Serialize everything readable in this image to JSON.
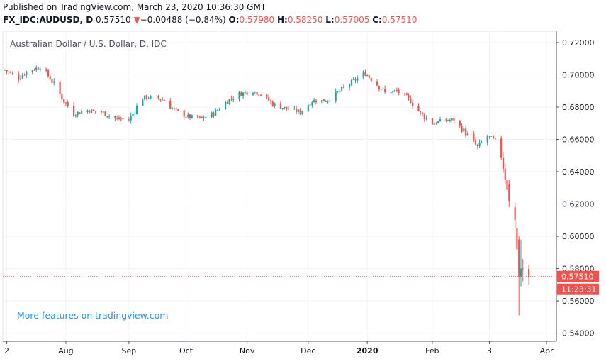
{
  "header": {
    "published": "Published on TradingView.com, March 23, 2020 10:36:30 GMT",
    "symbol": "FX_IDC:AUDUSD, D",
    "last": "0.57510",
    "arrow": "▼",
    "change": "−0.00488 (−0.84%)",
    "o_label": "O:",
    "o_value": "0.57980",
    "h_label": "H:",
    "h_value": "0.58250",
    "l_label": "L:",
    "l_value": "0.57005",
    "c_label": "C:",
    "c_value": "0.57510"
  },
  "promo": "More features on tradingview.com",
  "price_tag": {
    "price": "0.57510",
    "countdown": "11:23:31"
  },
  "colors": {
    "up": "#26a69a",
    "down": "#ef5350",
    "grid": "#f0f3fa",
    "axis": "#787b86"
  },
  "chart_data": {
    "type": "candlestick",
    "title": "Australian Dollar / U.S. Dollar, D, IDC",
    "ylim": [
      0.535,
      0.727
    ],
    "y_ticks": [
      0.72,
      0.7,
      0.68,
      0.66,
      0.64,
      0.62,
      0.6,
      0.58,
      0.56,
      0.54
    ],
    "y_tick_labels": [
      "0.72000",
      "0.70000",
      "0.68000",
      "0.66000",
      "0.64000",
      "0.62000",
      "0.60000",
      "0.58000",
      "0.56000",
      "0.54000"
    ],
    "x_ticks": [
      {
        "label": "2",
        "date": "2019-07-02"
      },
      {
        "label": "Aug",
        "date": "2019-08-01"
      },
      {
        "label": "Sep",
        "date": "2019-09-02"
      },
      {
        "label": "Oct",
        "date": "2019-10-01"
      },
      {
        "label": "Nov",
        "date": "2019-11-01"
      },
      {
        "label": "Dec",
        "date": "2019-12-02"
      },
      {
        "label": "2020",
        "date": "2020-01-01"
      },
      {
        "label": "Feb",
        "date": "2020-02-03"
      },
      {
        "label": "3",
        "date": "2020-03-03"
      },
      {
        "label": "Apr",
        "date": "2020-04-01"
      }
    ],
    "x_range": [
      "2019-06-30",
      "2020-04-06"
    ],
    "last_price": 0.5751,
    "close_path": [
      [
        "2019-07-01",
        0.703
      ],
      [
        "2019-07-08",
        0.698
      ],
      [
        "2019-07-12",
        0.702
      ],
      [
        "2019-07-19",
        0.705
      ],
      [
        "2019-07-24",
        0.698
      ],
      [
        "2019-07-31",
        0.684
      ],
      [
        "2019-08-05",
        0.676
      ],
      [
        "2019-08-12",
        0.678
      ],
      [
        "2019-08-19",
        0.677
      ],
      [
        "2019-08-26",
        0.673
      ],
      [
        "2019-09-02",
        0.672
      ],
      [
        "2019-09-09",
        0.686
      ],
      [
        "2019-09-16",
        0.686
      ],
      [
        "2019-09-20",
        0.684
      ],
      [
        "2019-09-25",
        0.678
      ],
      [
        "2019-10-02",
        0.674
      ],
      [
        "2019-10-09",
        0.673
      ],
      [
        "2019-10-15",
        0.676
      ],
      [
        "2019-10-22",
        0.684
      ],
      [
        "2019-10-28",
        0.688
      ],
      [
        "2019-11-04",
        0.69
      ],
      [
        "2019-11-08",
        0.688
      ],
      [
        "2019-11-14",
        0.682
      ],
      [
        "2019-11-21",
        0.679
      ],
      [
        "2019-11-28",
        0.677
      ],
      [
        "2019-12-04",
        0.684
      ],
      [
        "2019-12-11",
        0.684
      ],
      [
        "2019-12-18",
        0.69
      ],
      [
        "2019-12-26",
        0.697
      ],
      [
        "2019-12-31",
        0.701
      ],
      [
        "2020-01-06",
        0.694
      ],
      [
        "2020-01-10",
        0.689
      ],
      [
        "2020-01-16",
        0.69
      ],
      [
        "2020-01-23",
        0.684
      ],
      [
        "2020-01-28",
        0.676
      ],
      [
        "2020-02-03",
        0.67
      ],
      [
        "2020-02-10",
        0.672
      ],
      [
        "2020-02-14",
        0.672
      ],
      [
        "2020-02-20",
        0.664
      ],
      [
        "2020-02-26",
        0.655
      ],
      [
        "2020-03-02",
        0.662
      ],
      [
        "2020-03-06",
        0.659
      ],
      [
        "2020-03-09",
        0.65
      ],
      [
        "2020-03-12",
        0.631
      ],
      [
        "2020-03-16",
        0.612
      ],
      [
        "2020-03-18",
        0.586
      ],
      [
        "2020-03-19",
        0.572
      ],
      [
        "2020-03-20",
        0.58
      ],
      [
        "2020-03-23",
        0.5751
      ]
    ],
    "final_candles": [
      {
        "date": "2020-03-13",
        "o": 0.632,
        "h": 0.635,
        "l": 0.618,
        "c": 0.622
      },
      {
        "date": "2020-03-16",
        "o": 0.618,
        "h": 0.621,
        "l": 0.605,
        "c": 0.61
      },
      {
        "date": "2020-03-17",
        "o": 0.605,
        "h": 0.609,
        "l": 0.588,
        "c": 0.592
      },
      {
        "date": "2020-03-18",
        "o": 0.598,
        "h": 0.6,
        "l": 0.551,
        "c": 0.575
      },
      {
        "date": "2020-03-19",
        "o": 0.575,
        "h": 0.598,
        "l": 0.569,
        "c": 0.58
      },
      {
        "date": "2020-03-20",
        "o": 0.58,
        "h": 0.586,
        "l": 0.572,
        "c": 0.5799
      },
      {
        "date": "2020-03-23",
        "o": 0.5798,
        "h": 0.5825,
        "l": 0.57005,
        "c": 0.5751
      }
    ]
  }
}
